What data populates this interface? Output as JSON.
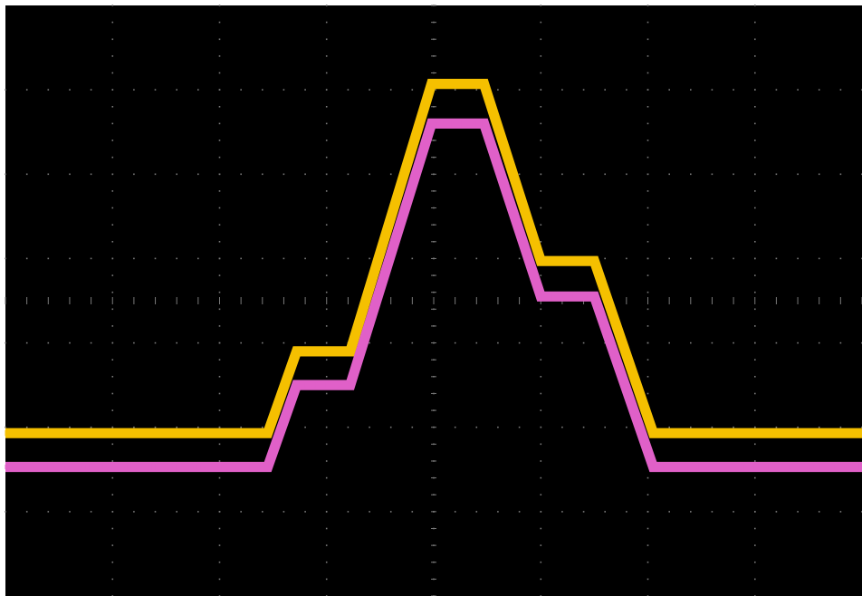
{
  "chart_data": {
    "type": "line",
    "title": "",
    "xlabel": "",
    "ylabel": "",
    "grid": true,
    "grid_divisions": {
      "x": 8,
      "y": 7
    },
    "xlim": [
      0,
      8
    ],
    "ylim": [
      0,
      7
    ],
    "background_color": "#000000",
    "grid_color": "#7a7a7a",
    "series": [
      {
        "color": "#f5c000",
        "noise": 0.06,
        "trace_thickness": 0.12,
        "points": [
          [
            0.0,
            1.93
          ],
          [
            2.45,
            1.93
          ],
          [
            2.72,
            2.9
          ],
          [
            3.22,
            2.9
          ],
          [
            3.98,
            6.07
          ],
          [
            4.47,
            6.07
          ],
          [
            5.0,
            3.97
          ],
          [
            5.5,
            3.97
          ],
          [
            6.05,
            1.93
          ],
          [
            8.0,
            1.93
          ]
        ]
      },
      {
        "color": "#e060c8",
        "noise": 0.06,
        "trace_thickness": 0.12,
        "points": [
          [
            0.0,
            1.53
          ],
          [
            2.45,
            1.53
          ],
          [
            2.72,
            2.5
          ],
          [
            3.22,
            2.5
          ],
          [
            3.98,
            5.6
          ],
          [
            4.47,
            5.6
          ],
          [
            5.0,
            3.55
          ],
          [
            5.5,
            3.55
          ],
          [
            6.05,
            1.53
          ],
          [
            8.0,
            1.53
          ]
        ]
      }
    ]
  }
}
